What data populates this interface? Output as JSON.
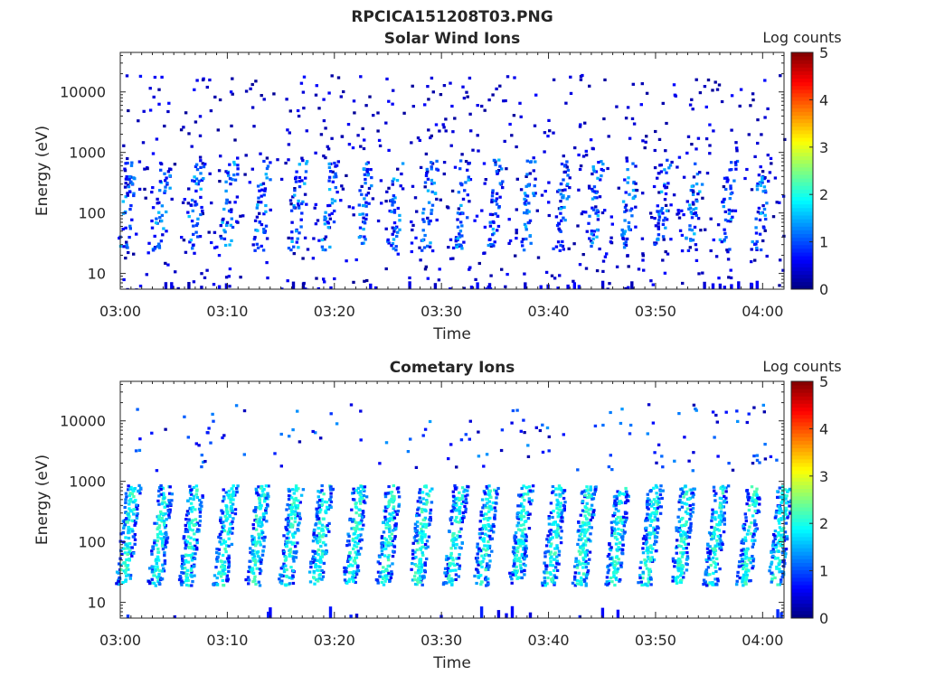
{
  "figure": {
    "title": "RPCICA151208T03.PNG",
    "xticks": [
      "03:00",
      "03:10",
      "03:20",
      "03:30",
      "03:40",
      "03:50",
      "04:00"
    ]
  },
  "chart_data": [
    {
      "type": "heatmap",
      "title": "Solar Wind Ions",
      "xlabel": "Time",
      "ylabel": "Energy (eV)",
      "x_range": [
        "03:00",
        "04:02"
      ],
      "y_scale": "log",
      "y_range_eV": [
        5.5,
        45000
      ],
      "y_ticks": [
        10,
        100,
        1000,
        10000
      ],
      "y_tick_labels": [
        "10",
        "100",
        "1000",
        "10000"
      ],
      "colorbar": {
        "label": "Log counts",
        "range": [
          0,
          5
        ],
        "ticks": [
          "0",
          "1",
          "2",
          "3",
          "4",
          "5"
        ]
      },
      "colormap": "jet",
      "grid": false,
      "dominant_level_log_counts": [
        0.3,
        1.3
      ],
      "band_times_min": [
        0.5,
        3.8,
        6.9,
        10.0,
        13.1,
        16.4,
        19.5,
        22.6,
        25.6,
        28.7,
        31.8,
        34.9,
        38.0,
        41.1,
        44.2,
        47.3,
        50.4,
        53.5,
        56.6,
        59.7
      ]
    },
    {
      "type": "heatmap",
      "title": "Cometary Ions",
      "xlabel": "Time",
      "ylabel": "Energy (eV)",
      "x_range": [
        "03:00",
        "04:02"
      ],
      "y_scale": "log",
      "y_range_eV": [
        5.5,
        45000
      ],
      "y_ticks": [
        10,
        100,
        1000,
        10000
      ],
      "y_tick_labels": [
        "10",
        "100",
        "1000",
        "10000"
      ],
      "colorbar": {
        "label": "Log counts",
        "range": [
          0,
          5
        ],
        "ticks": [
          "0",
          "1",
          "2",
          "3",
          "4",
          "5"
        ]
      },
      "colormap": "jet",
      "grid": false,
      "band_energy_range_eV": [
        20,
        900
      ],
      "band_peak_log_counts": 2.3,
      "band_times_min": [
        0.6,
        3.6,
        6.5,
        9.7,
        12.7,
        15.8,
        18.6,
        21.8,
        24.9,
        28.0,
        31.2,
        34.0,
        37.3,
        40.4,
        43.2,
        46.3,
        49.4,
        52.4,
        55.5,
        58.6,
        61.5
      ]
    }
  ]
}
